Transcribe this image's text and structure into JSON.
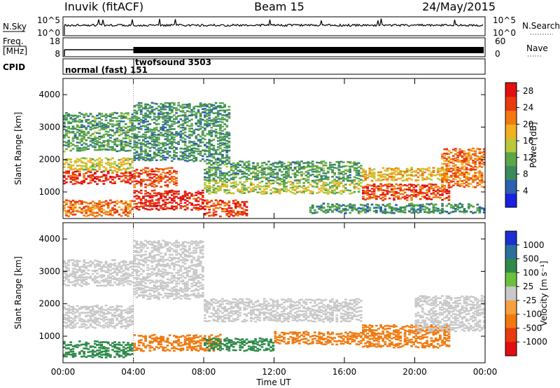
{
  "header": {
    "station": "Inuvik (fitACF)",
    "beam": "Beam 15",
    "date": "24/May/2015"
  },
  "strips": {
    "nsky_label": "N.Sky",
    "nsearch_label": "N.Search",
    "freq_label_1": "Freq.",
    "freq_label_2": "[MHz]",
    "nave_label": "Nave",
    "cpid_label": "CPID",
    "left_tick_top": "10^5",
    "left_tick_bottom": "10^0",
    "right_tick_top": "10^5",
    "right_tick_bottom": "10^0",
    "freq_tick_top": "18",
    "freq_tick_bottom": "8",
    "nave_tick_top": "60",
    "nave_tick_bottom": "0",
    "cpid_1": "normal (fast) 151",
    "cpid_2": "twofsound 3503"
  },
  "chart_data": [
    {
      "type": "heatmap",
      "panel": "power",
      "ylabel": "Slant Range [km]",
      "xlabel": "Time UT",
      "x_ticks": [
        "00:00",
        "04:00",
        "08:00",
        "12:00",
        "16:00",
        "20:00",
        "00:00"
      ],
      "xlim_hours": [
        0,
        24
      ],
      "y_ticks": [
        1000,
        2000,
        3000,
        4000
      ],
      "ylim": [
        180,
        4500
      ],
      "colorbar": {
        "label": "Power [dB]",
        "ticks": [
          4,
          8,
          12,
          16,
          20,
          24,
          28
        ],
        "range": [
          0,
          30
        ],
        "colors": [
          "#1a20e0",
          "#2e5fb0",
          "#3b8a5c",
          "#5aa64a",
          "#b8c83a",
          "#f0b020",
          "#f07a10",
          "#e83a10",
          "#e01010"
        ]
      },
      "bands": [
        {
          "t0": 0.0,
          "t1": 4.0,
          "r0": 1300,
          "r1": 1700,
          "level": 26
        },
        {
          "t0": 0.0,
          "t1": 4.0,
          "r0": 1700,
          "r1": 2100,
          "level": 16
        },
        {
          "t0": 0.0,
          "t1": 4.0,
          "r0": 2300,
          "r1": 3500,
          "level": 10
        },
        {
          "t0": 0.0,
          "t1": 4.0,
          "r0": 300,
          "r1": 800,
          "level": 22
        },
        {
          "t0": 4.0,
          "t1": 8.0,
          "r0": 500,
          "r1": 1100,
          "level": 27
        },
        {
          "t0": 4.0,
          "t1": 6.5,
          "r0": 1200,
          "r1": 1800,
          "level": 24
        },
        {
          "t0": 4.0,
          "t1": 9.5,
          "r0": 2000,
          "r1": 3800,
          "level": 9
        },
        {
          "t0": 8.0,
          "t1": 10.5,
          "r0": 300,
          "r1": 800,
          "level": 25
        },
        {
          "t0": 8.0,
          "t1": 17.0,
          "r0": 1000,
          "r1": 1400,
          "level": 15
        },
        {
          "t0": 8.0,
          "t1": 17.0,
          "r0": 1400,
          "r1": 2000,
          "level": 10
        },
        {
          "t0": 17.0,
          "t1": 22.0,
          "r0": 800,
          "r1": 1300,
          "level": 25
        },
        {
          "t0": 17.0,
          "t1": 22.0,
          "r0": 1400,
          "r1": 1800,
          "level": 18
        },
        {
          "t0": 21.5,
          "t1": 24.0,
          "r0": 1200,
          "r1": 2400,
          "level": 22
        },
        {
          "t0": 14.0,
          "t1": 24.0,
          "r0": 400,
          "r1": 700,
          "level": 9
        }
      ]
    },
    {
      "type": "heatmap",
      "panel": "velocity",
      "ylabel": "Slant Range [km]",
      "xlabel": "Time UT",
      "x_ticks": [
        "00:00",
        "04:00",
        "08:00",
        "12:00",
        "16:00",
        "20:00",
        "00:00"
      ],
      "xlim_hours": [
        0,
        24
      ],
      "y_ticks": [
        1000,
        2000,
        3000,
        4000
      ],
      "ylim": [
        180,
        4500
      ],
      "colorbar": {
        "label": "Velocity [m s⁻¹]",
        "ticks": [
          "1000",
          "500",
          "100",
          "25",
          "-25",
          "-100",
          "-500",
          "-1000"
        ],
        "colors": [
          "#1d2fd0",
          "#2b6f9a",
          "#2f8a4a",
          "#6cc040",
          "#c8c8c8",
          "#f5a040",
          "#f07a10",
          "#e83a10",
          "#e01010"
        ]
      },
      "bands": [
        {
          "t0": 0.0,
          "t1": 4.0,
          "r0": 1300,
          "r1": 2000,
          "level": 0
        },
        {
          "t0": 0.0,
          "t1": 4.0,
          "r0": 2600,
          "r1": 3400,
          "level": 0
        },
        {
          "t0": 0.0,
          "t1": 4.0,
          "r0": 400,
          "r1": 900,
          "level": 120
        },
        {
          "t0": 4.0,
          "t1": 9.0,
          "r0": 600,
          "r1": 1100,
          "level": -300
        },
        {
          "t0": 4.0,
          "t1": 8.0,
          "r0": 2200,
          "r1": 4000,
          "level": 0
        },
        {
          "t0": 8.0,
          "t1": 12.0,
          "r0": 600,
          "r1": 1000,
          "level": 200
        },
        {
          "t0": 8.0,
          "t1": 17.0,
          "r0": 1500,
          "r1": 2200,
          "level": 0
        },
        {
          "t0": 12.0,
          "t1": 17.0,
          "r0": 800,
          "r1": 1200,
          "level": -200
        },
        {
          "t0": 17.0,
          "t1": 22.0,
          "r0": 700,
          "r1": 1400,
          "level": -400
        },
        {
          "t0": 20.0,
          "t1": 24.0,
          "r0": 1200,
          "r1": 2300,
          "level": 0
        }
      ]
    }
  ]
}
